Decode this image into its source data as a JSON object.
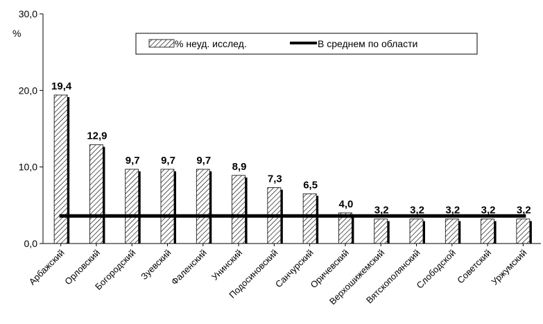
{
  "chart_data": {
    "type": "bar",
    "ylabel": "%",
    "ylim": [
      0,
      30
    ],
    "yticks": [
      "0,0",
      "10,0",
      "20,0",
      "30,0"
    ],
    "grid": false,
    "legend_position": "top-right",
    "categories": [
      "Арбажский",
      "Орловский",
      "Богородский",
      "Зуевский",
      "Фаленский",
      "Унинский",
      "Подосиновский",
      "Санчурский",
      "Оричевский",
      "Верхошижемский",
      "Вятскополянский",
      "Слободской",
      "Советский",
      "Уржумский"
    ],
    "series": [
      {
        "name": "% неуд. исслед.",
        "values": [
          19.4,
          12.9,
          9.7,
          9.7,
          9.7,
          8.9,
          7.3,
          6.5,
          4.0,
          3.2,
          3.2,
          3.2,
          3.2,
          3.2
        ],
        "labels": [
          "19,4",
          "12,9",
          "9,7",
          "9,7",
          "9,7",
          "8,9",
          "7,3",
          "6,5",
          "4,0",
          "3,2",
          "3,2",
          "3,2",
          "3,2",
          "3,2"
        ]
      },
      {
        "name": "В среднем по области",
        "type": "line",
        "value": 3.6
      }
    ]
  }
}
